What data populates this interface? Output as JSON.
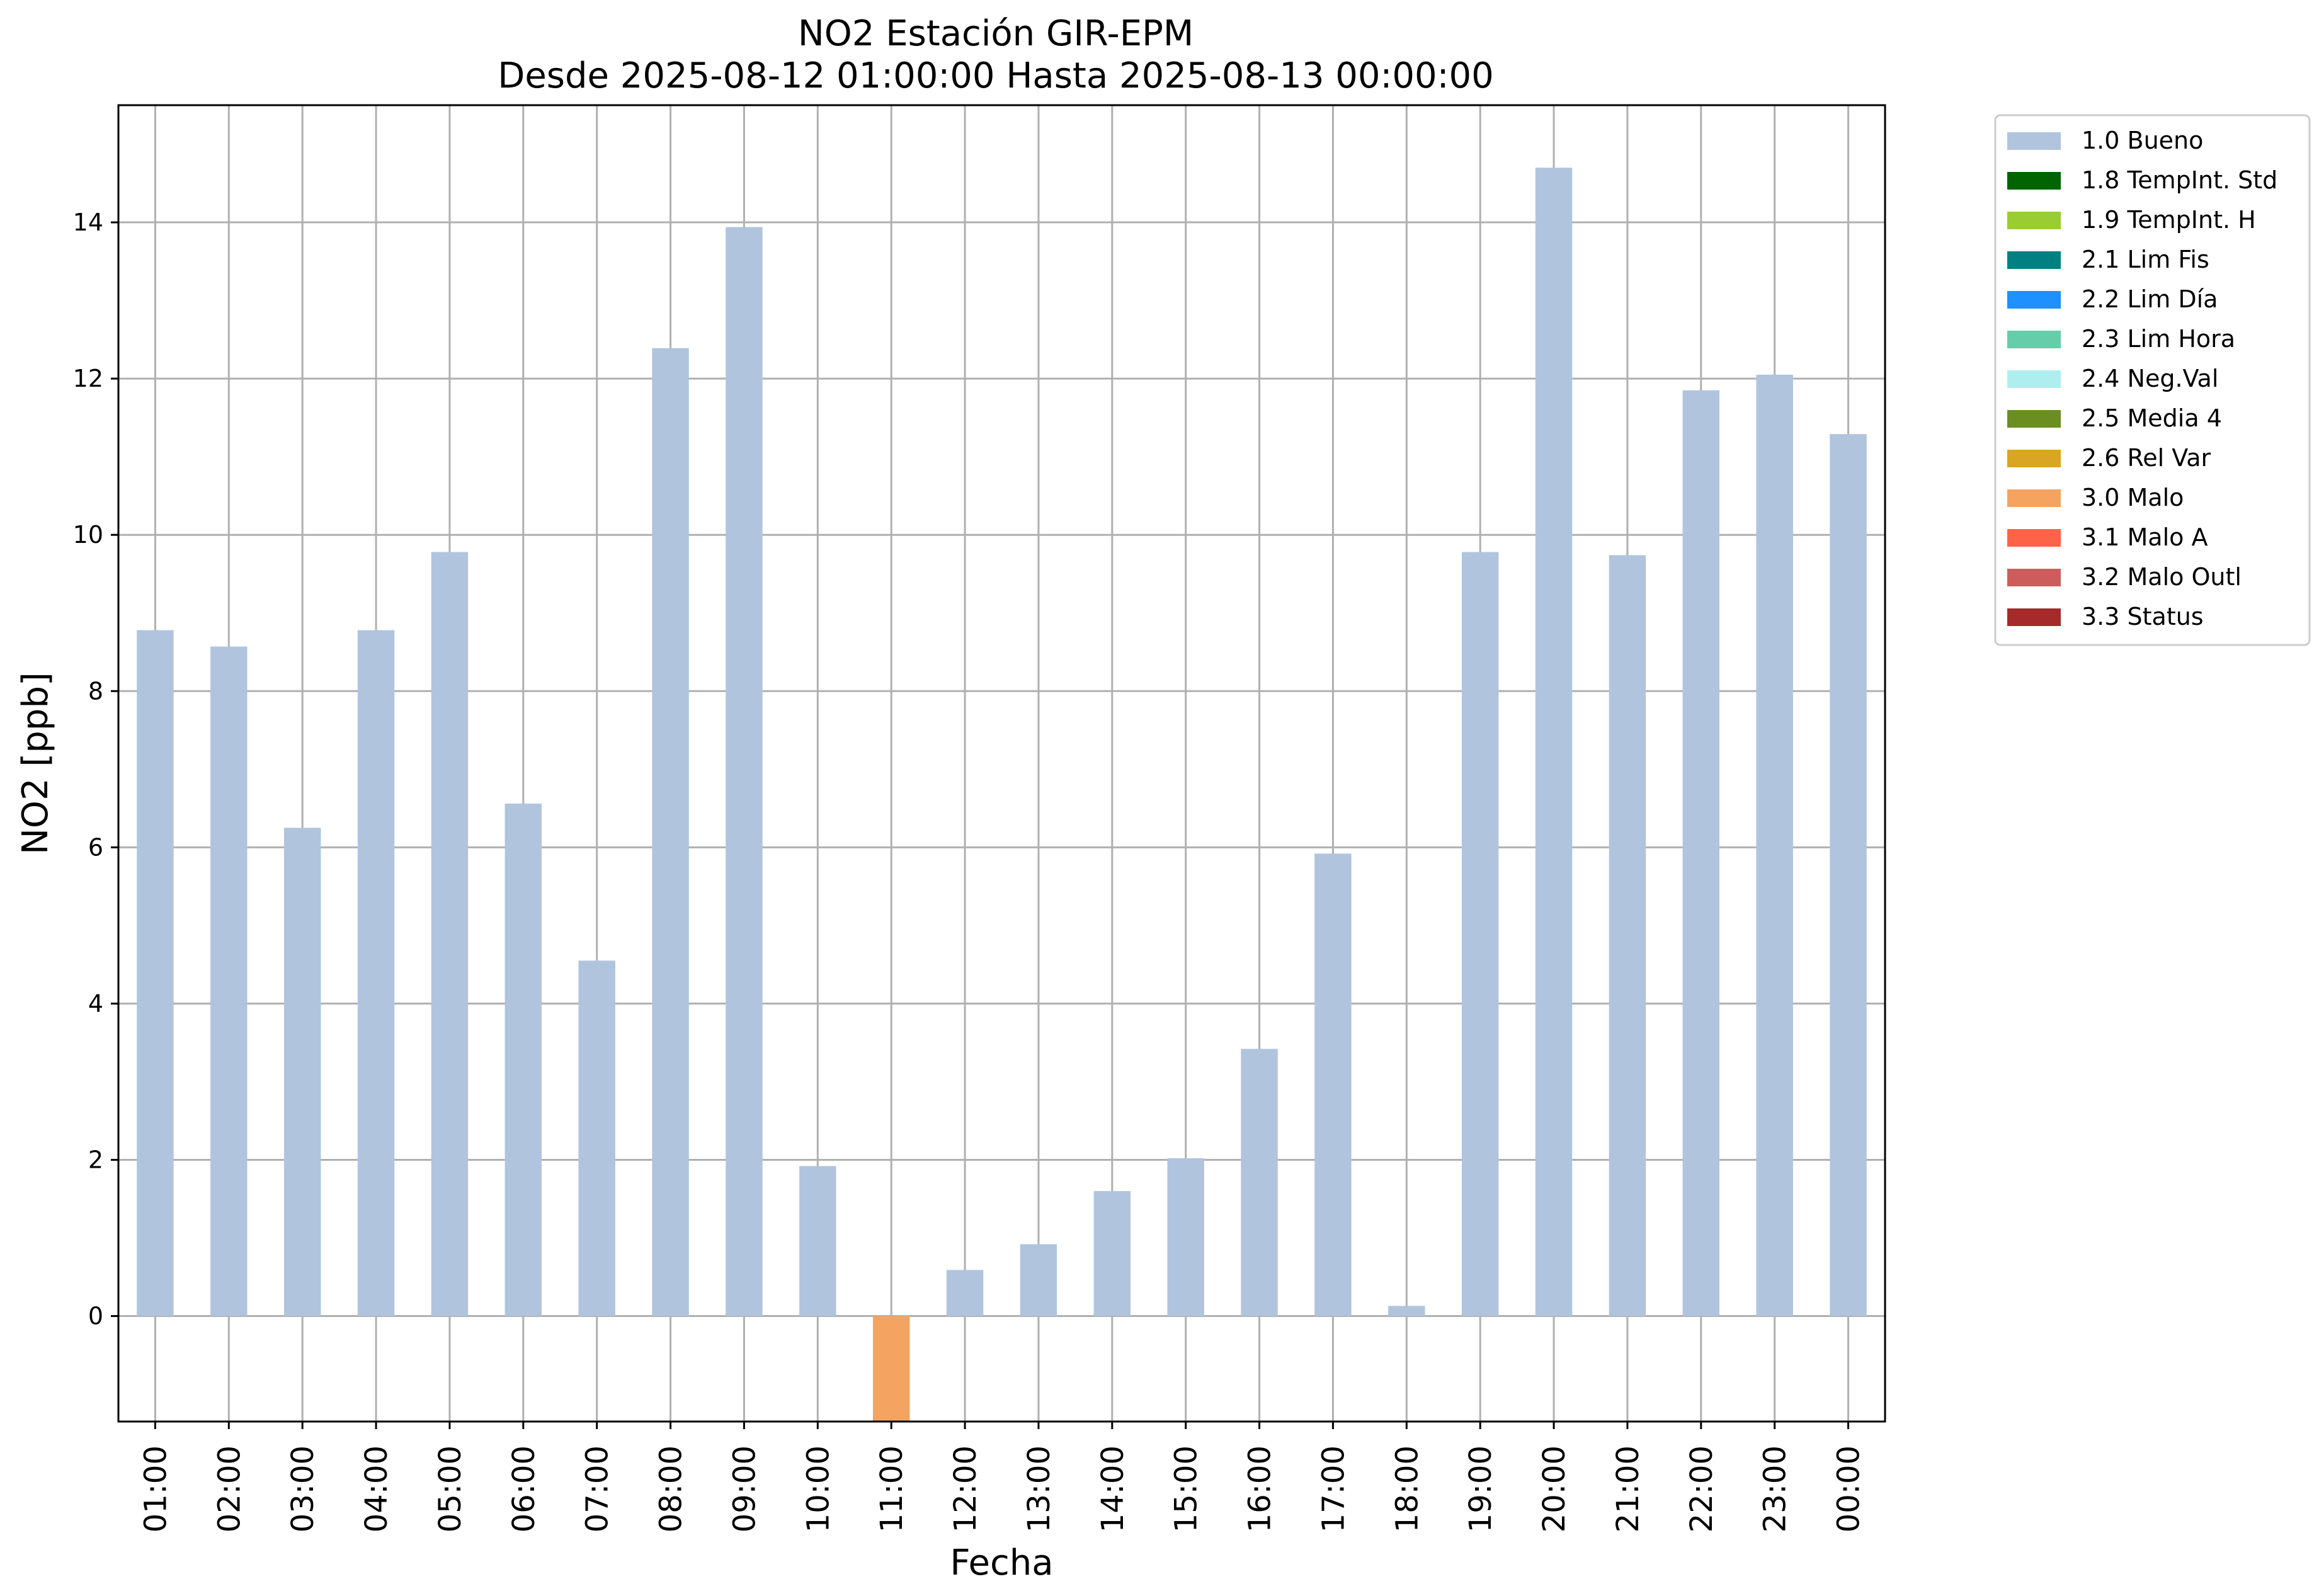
{
  "chart_data": {
    "type": "bar",
    "title": "NO2 Estación GIR-EPM",
    "subtitle": "Desde 2025-08-12 01:00:00 Hasta 2025-08-13 00:00:00",
    "xlabel": "Fecha",
    "ylabel": "NO2 [ppb]",
    "ylim": [
      -1.35,
      15.5
    ],
    "yticks": [
      0,
      2,
      4,
      6,
      8,
      10,
      12,
      14
    ],
    "grid": true,
    "legend_position": "outside-top-right",
    "categories": [
      "01:00",
      "02:00",
      "03:00",
      "04:00",
      "05:00",
      "06:00",
      "07:00",
      "08:00",
      "09:00",
      "10:00",
      "11:00",
      "12:00",
      "13:00",
      "14:00",
      "15:00",
      "16:00",
      "17:00",
      "18:00",
      "19:00",
      "20:00",
      "21:00",
      "22:00",
      "23:00",
      "00:00"
    ],
    "values": [
      8.78,
      8.57,
      6.25,
      8.78,
      9.78,
      6.56,
      4.55,
      12.39,
      13.94,
      1.92,
      -1.35,
      0.59,
      0.92,
      1.6,
      2.02,
      3.42,
      5.92,
      0.13,
      9.78,
      14.7,
      9.74,
      11.85,
      12.05,
      11.29
    ],
    "flags": [
      "1.0 Bueno",
      "1.0 Bueno",
      "1.0 Bueno",
      "1.0 Bueno",
      "1.0 Bueno",
      "1.0 Bueno",
      "1.0 Bueno",
      "1.0 Bueno",
      "1.0 Bueno",
      "1.0 Bueno",
      "3.0 Malo",
      "1.0 Bueno",
      "1.0 Bueno",
      "1.0 Bueno",
      "1.0 Bueno",
      "1.0 Bueno",
      "1.0 Bueno",
      "1.0 Bueno",
      "1.0 Bueno",
      "1.0 Bueno",
      "1.0 Bueno",
      "1.0 Bueno",
      "1.0 Bueno",
      "1.0 Bueno"
    ],
    "legend": [
      {
        "label": "1.0 Bueno",
        "color": "#b0c4de"
      },
      {
        "label": "1.8 TempInt. Std",
        "color": "#006400"
      },
      {
        "label": "1.9 TempInt. H",
        "color": "#9acd32"
      },
      {
        "label": "2.1 Lim Fis",
        "color": "#008080"
      },
      {
        "label": "2.2 Lim Día",
        "color": "#1e90ff"
      },
      {
        "label": "2.3 Lim Hora",
        "color": "#66cdaa"
      },
      {
        "label": "2.4 Neg.Val",
        "color": "#afeeee"
      },
      {
        "label": "2.5 Media 4",
        "color": "#6b8e23"
      },
      {
        "label": "2.6 Rel Var",
        "color": "#daa520"
      },
      {
        "label": "3.0 Malo",
        "color": "#f4a460"
      },
      {
        "label": "3.1 Malo A",
        "color": "#ff6347"
      },
      {
        "label": "3.2 Malo Outl",
        "color": "#cd5c5c"
      },
      {
        "label": "3.3 Status",
        "color": "#a52a2a"
      }
    ]
  }
}
